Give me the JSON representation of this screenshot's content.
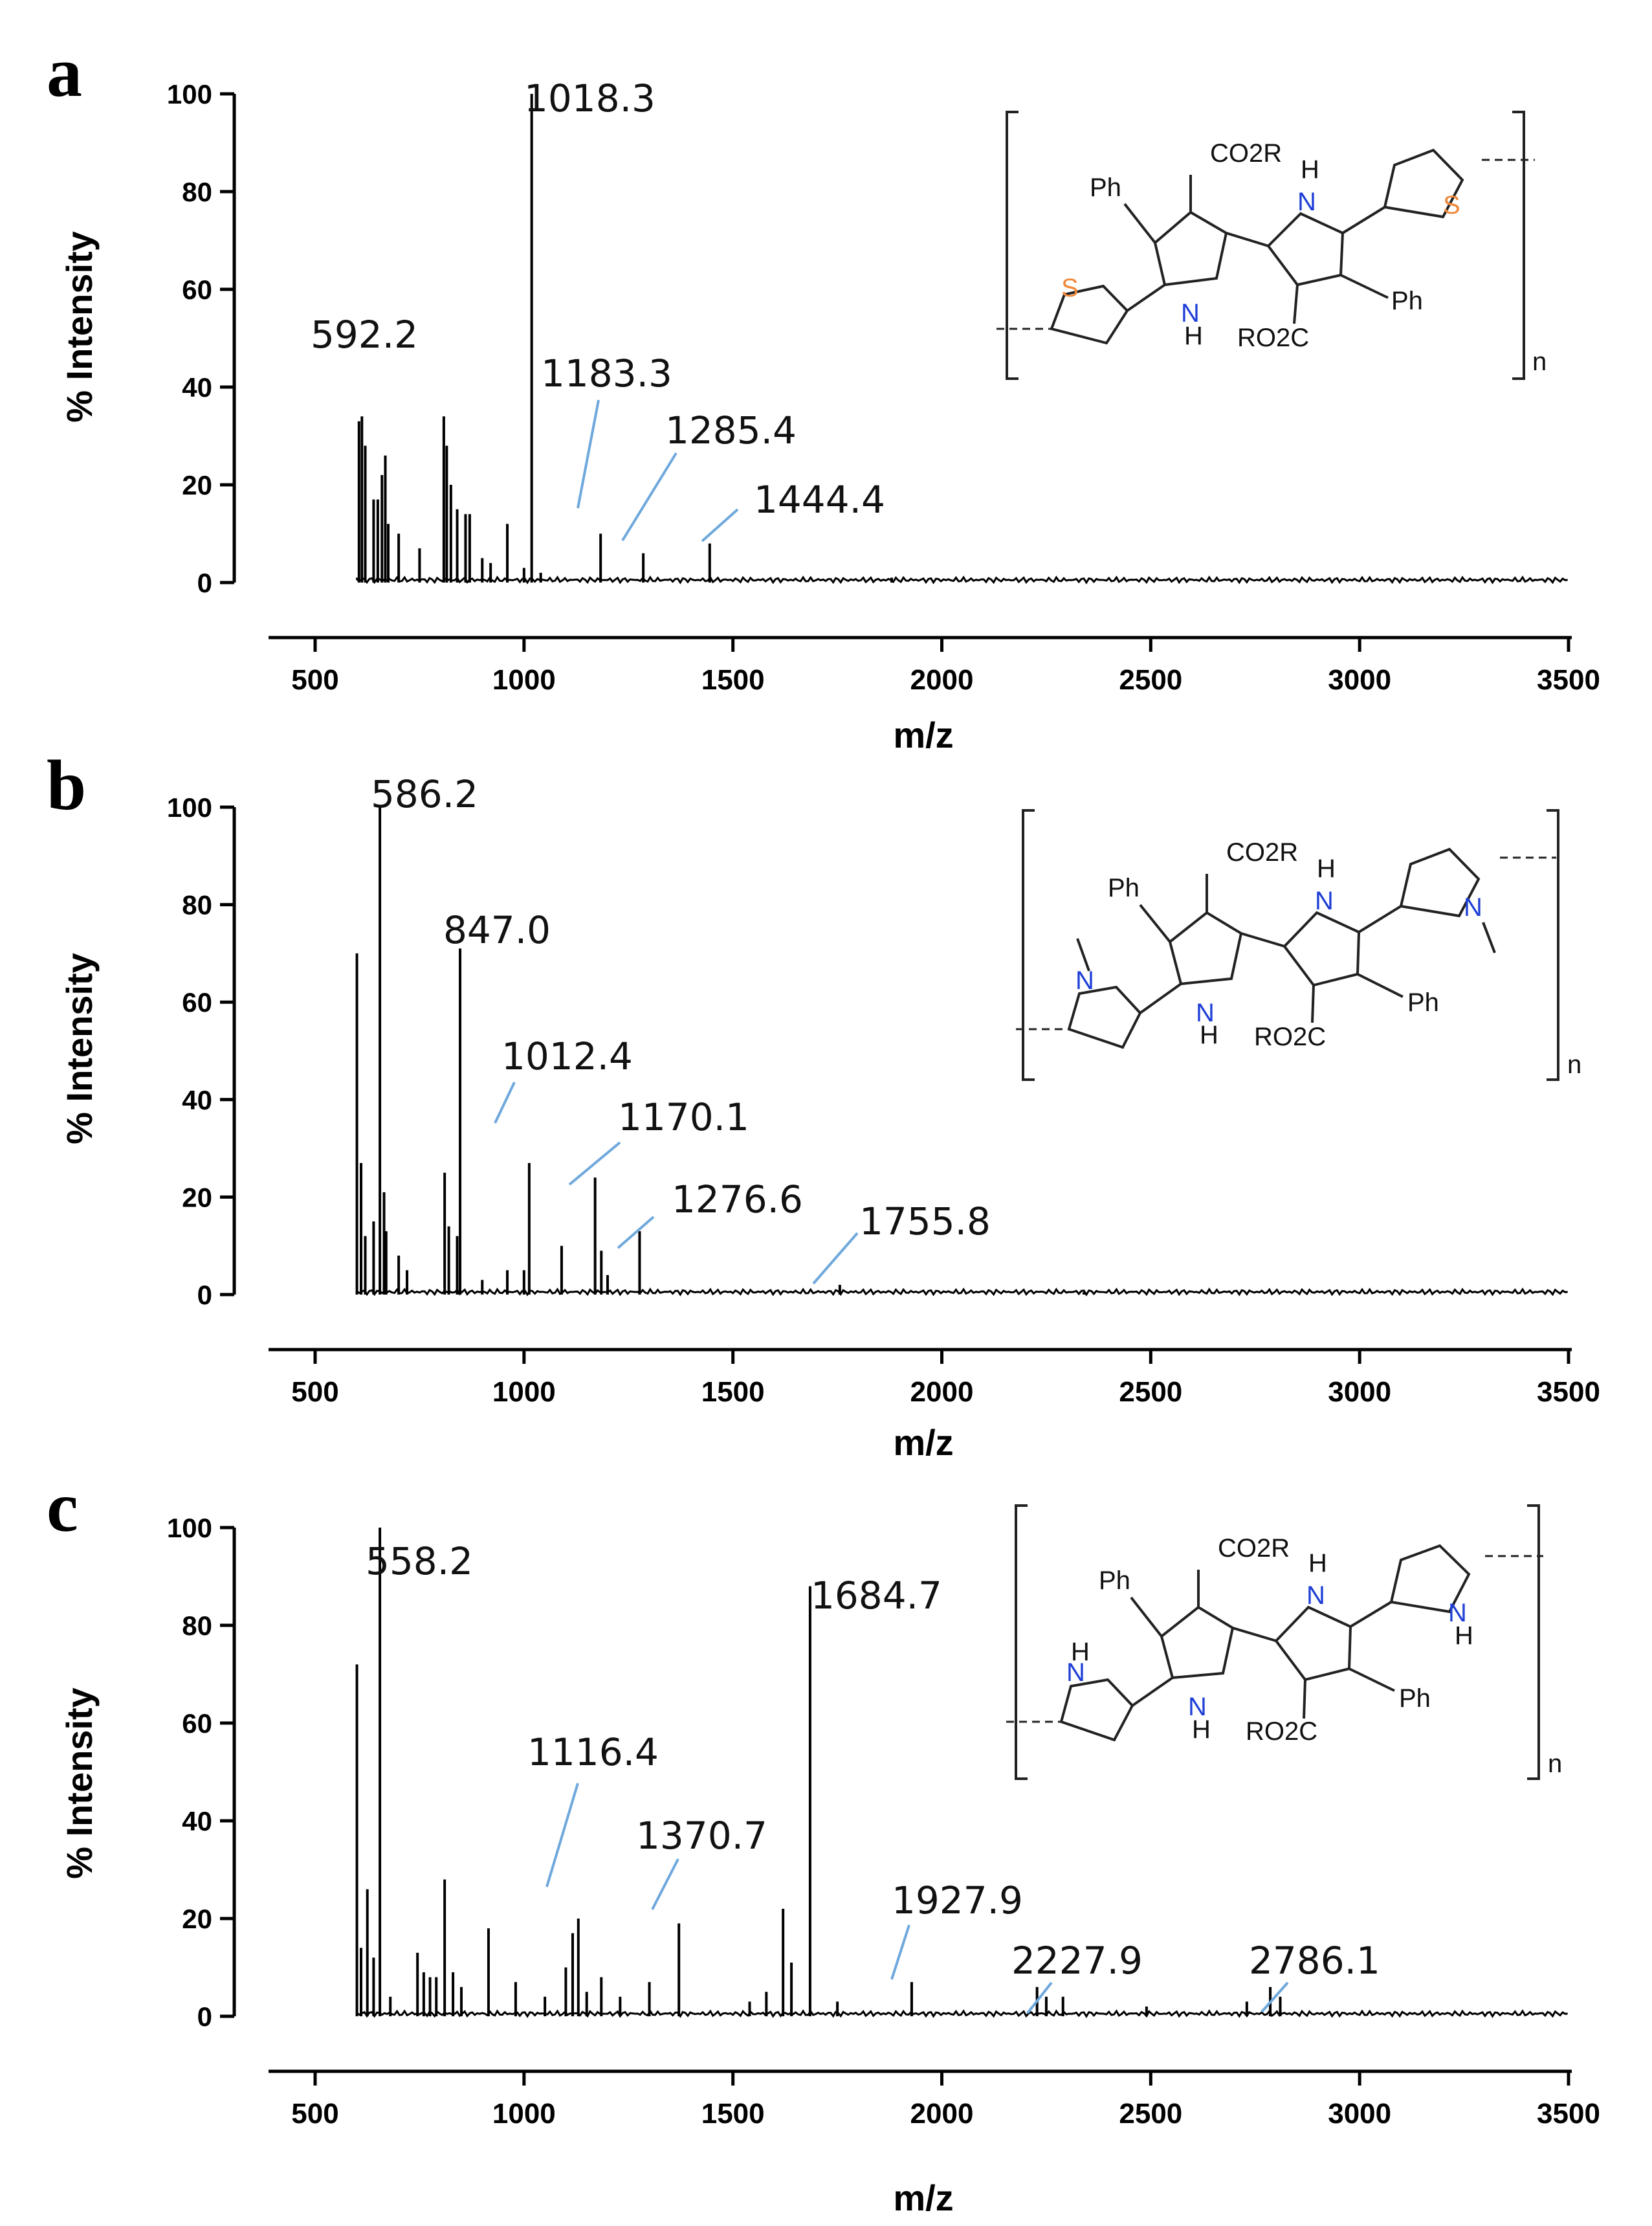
{
  "chart_data": [
    {
      "type": "line",
      "panel": "a",
      "xlabel": "m/z",
      "ylabel": "% Intensity",
      "xlim": [
        500,
        3500
      ],
      "ylim": [
        0,
        100
      ],
      "xticks": [
        "500",
        "1000",
        "1500",
        "2000",
        "2500",
        "3000",
        "3500"
      ],
      "yticks": [
        "0",
        "20",
        "40",
        "60",
        "80",
        "100"
      ],
      "peaks": [
        {
          "x": 605,
          "y": 33
        },
        {
          "x": 612,
          "y": 34
        },
        {
          "x": 620,
          "y": 28
        },
        {
          "x": 640,
          "y": 17
        },
        {
          "x": 650,
          "y": 17
        },
        {
          "x": 660,
          "y": 22
        },
        {
          "x": 668,
          "y": 26
        },
        {
          "x": 675,
          "y": 12
        },
        {
          "x": 700,
          "y": 10
        },
        {
          "x": 750,
          "y": 7
        },
        {
          "x": 808,
          "y": 34
        },
        {
          "x": 815,
          "y": 28
        },
        {
          "x": 825,
          "y": 20
        },
        {
          "x": 840,
          "y": 15
        },
        {
          "x": 860,
          "y": 14
        },
        {
          "x": 870,
          "y": 14
        },
        {
          "x": 900,
          "y": 5
        },
        {
          "x": 920,
          "y": 4
        },
        {
          "x": 960,
          "y": 12
        },
        {
          "x": 1000,
          "y": 3
        },
        {
          "x": 1018.3,
          "y": 100
        },
        {
          "x": 1040,
          "y": 2
        },
        {
          "x": 1183.3,
          "y": 10
        },
        {
          "x": 1285.4,
          "y": 6
        },
        {
          "x": 1444.4,
          "y": 8
        },
        {
          "x": 1880,
          "y": 1
        }
      ],
      "annotations": [
        {
          "text": "592.2"
        },
        {
          "text": "1018.3"
        },
        {
          "text": "1183.3"
        },
        {
          "text": "1285.4"
        },
        {
          "text": "1444.4"
        }
      ],
      "inset": {
        "structure": "bithiophene-bipyrrole polymer",
        "labels": [
          "CO2R",
          "H",
          "Ph",
          "S",
          "S",
          "N",
          "N",
          "H",
          "Ph",
          "RO2C",
          "n"
        ]
      }
    },
    {
      "type": "line",
      "panel": "b",
      "xlabel": "m/z",
      "ylabel": "% Intensity",
      "xlim": [
        500,
        3500
      ],
      "ylim": [
        0,
        100
      ],
      "xticks": [
        "500",
        "1000",
        "1500",
        "2000",
        "2500",
        "3000",
        "3500"
      ],
      "yticks": [
        "0",
        "20",
        "40",
        "60",
        "80",
        "100"
      ],
      "peaks": [
        {
          "x": 600,
          "y": 70
        },
        {
          "x": 610,
          "y": 27
        },
        {
          "x": 620,
          "y": 12
        },
        {
          "x": 640,
          "y": 15
        },
        {
          "x": 655,
          "y": 100
        },
        {
          "x": 665,
          "y": 21
        },
        {
          "x": 670,
          "y": 13
        },
        {
          "x": 700,
          "y": 8
        },
        {
          "x": 720,
          "y": 5
        },
        {
          "x": 810,
          "y": 25
        },
        {
          "x": 820,
          "y": 14
        },
        {
          "x": 840,
          "y": 12
        },
        {
          "x": 847.0,
          "y": 71
        },
        {
          "x": 900,
          "y": 3
        },
        {
          "x": 960,
          "y": 5
        },
        {
          "x": 1000,
          "y": 5
        },
        {
          "x": 1012.4,
          "y": 27
        },
        {
          "x": 1090,
          "y": 10
        },
        {
          "x": 1170.1,
          "y": 24
        },
        {
          "x": 1185,
          "y": 9
        },
        {
          "x": 1200,
          "y": 4
        },
        {
          "x": 1276.6,
          "y": 13
        },
        {
          "x": 1755.8,
          "y": 2
        },
        {
          "x": 2340,
          "y": 0.5
        }
      ],
      "annotations": [
        {
          "text": "586.2"
        },
        {
          "text": "847.0"
        },
        {
          "text": "1012.4"
        },
        {
          "text": "1170.1"
        },
        {
          "text": "1276.6"
        },
        {
          "text": "1755.8"
        }
      ],
      "inset": {
        "structure": "N-methylpyrrole-bipyrrole polymer",
        "labels": [
          "CO2R",
          "H",
          "Ph",
          "N",
          "N",
          "N",
          "N",
          "H",
          "Ph",
          "RO2C",
          "n"
        ]
      }
    },
    {
      "type": "line",
      "panel": "c",
      "xlabel": "m/z",
      "ylabel": "% Intensity",
      "xlim": [
        500,
        3500
      ],
      "ylim": [
        0,
        100
      ],
      "xticks": [
        "500",
        "1000",
        "1500",
        "2000",
        "2500",
        "3000",
        "3500"
      ],
      "yticks": [
        "0",
        "20",
        "40",
        "60",
        "80",
        "100"
      ],
      "peaks": [
        {
          "x": 600,
          "y": 72
        },
        {
          "x": 610,
          "y": 14
        },
        {
          "x": 625,
          "y": 26
        },
        {
          "x": 640,
          "y": 12
        },
        {
          "x": 655,
          "y": 100
        },
        {
          "x": 680,
          "y": 4
        },
        {
          "x": 745,
          "y": 13
        },
        {
          "x": 760,
          "y": 9
        },
        {
          "x": 775,
          "y": 8
        },
        {
          "x": 790,
          "y": 8
        },
        {
          "x": 810,
          "y": 28
        },
        {
          "x": 830,
          "y": 9
        },
        {
          "x": 850,
          "y": 6
        },
        {
          "x": 915,
          "y": 18
        },
        {
          "x": 980,
          "y": 7
        },
        {
          "x": 1050,
          "y": 4
        },
        {
          "x": 1100,
          "y": 10
        },
        {
          "x": 1116.4,
          "y": 17
        },
        {
          "x": 1130,
          "y": 20
        },
        {
          "x": 1150,
          "y": 5
        },
        {
          "x": 1185,
          "y": 8
        },
        {
          "x": 1230,
          "y": 4
        },
        {
          "x": 1300,
          "y": 7
        },
        {
          "x": 1370.7,
          "y": 19
        },
        {
          "x": 1540,
          "y": 3
        },
        {
          "x": 1580,
          "y": 5
        },
        {
          "x": 1620,
          "y": 22
        },
        {
          "x": 1640,
          "y": 11
        },
        {
          "x": 1684.7,
          "y": 88
        },
        {
          "x": 1750,
          "y": 3
        },
        {
          "x": 1927.9,
          "y": 7
        },
        {
          "x": 2227.9,
          "y": 6
        },
        {
          "x": 2250,
          "y": 4
        },
        {
          "x": 2290,
          "y": 4
        },
        {
          "x": 2490,
          "y": 2
        },
        {
          "x": 2730,
          "y": 3
        },
        {
          "x": 2786.1,
          "y": 6
        },
        {
          "x": 2810,
          "y": 4
        }
      ],
      "annotations": [
        {
          "text": "558.2"
        },
        {
          "text": "1684.7"
        },
        {
          "text": "1116.4"
        },
        {
          "text": "1370.7"
        },
        {
          "text": "1927.9"
        },
        {
          "text": "2227.9"
        },
        {
          "text": "2786.1"
        }
      ],
      "inset": {
        "structure": "pyrrole-bipyrrole polymer",
        "labels": [
          "CO2R",
          "H",
          "Ph",
          "H",
          "N",
          "N",
          "N",
          "N",
          "H",
          "H",
          "Ph",
          "RO2C",
          "n"
        ]
      }
    }
  ],
  "panel_letters": [
    "a",
    "b",
    "c"
  ],
  "colors": {
    "trace": "#000000",
    "leader": "#6fa8dc",
    "oxygen": "#e8311a",
    "nitrogen": "#1f3fd6",
    "sulfur": "#f0883a"
  }
}
